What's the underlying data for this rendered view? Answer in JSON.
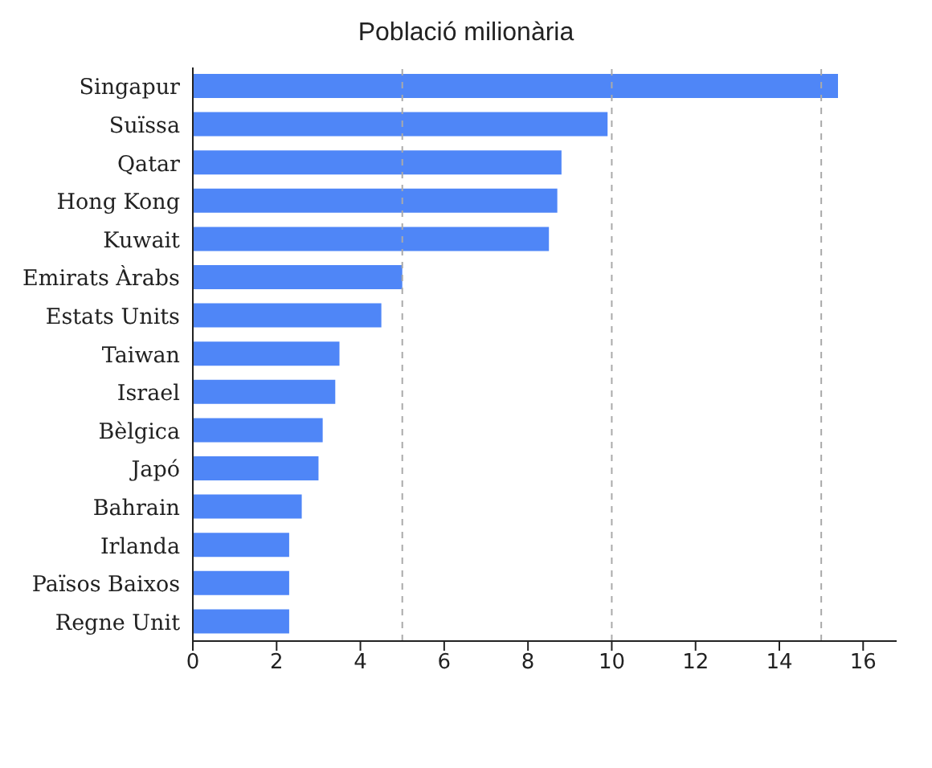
{
  "chart_data": {
    "type": "bar",
    "orientation": "horizontal",
    "title": "Població milionària",
    "categories": [
      "Singapur",
      "Suïssa",
      "Qatar",
      "Hong Kong",
      "Kuwait",
      "Emirats Àrabs",
      "Estats Units",
      "Taiwan",
      "Israel",
      "Bèlgica",
      "Japó",
      "Bahrain",
      "Irlanda",
      "Països Baixos",
      "Regne Unit"
    ],
    "values": [
      15.4,
      9.9,
      8.8,
      8.7,
      8.5,
      5.0,
      4.5,
      3.5,
      3.4,
      3.1,
      3.0,
      2.6,
      2.3,
      2.3,
      2.3
    ],
    "color": "#4f86f7",
    "xlim": [
      0,
      16.8
    ],
    "xticks": [
      0,
      2,
      4,
      6,
      8,
      10,
      12,
      14,
      16
    ],
    "ref_lines": [
      {
        "axis": "x",
        "value": 5,
        "color": "#aaaaaa",
        "line_style": "dashed"
      },
      {
        "axis": "x",
        "value": 10,
        "color": "#aaaaaa",
        "line_style": "dashed"
      },
      {
        "axis": "x",
        "value": 15,
        "color": "#aaaaaa",
        "line_style": "dashed"
      }
    ],
    "grid": false,
    "legend": false
  }
}
